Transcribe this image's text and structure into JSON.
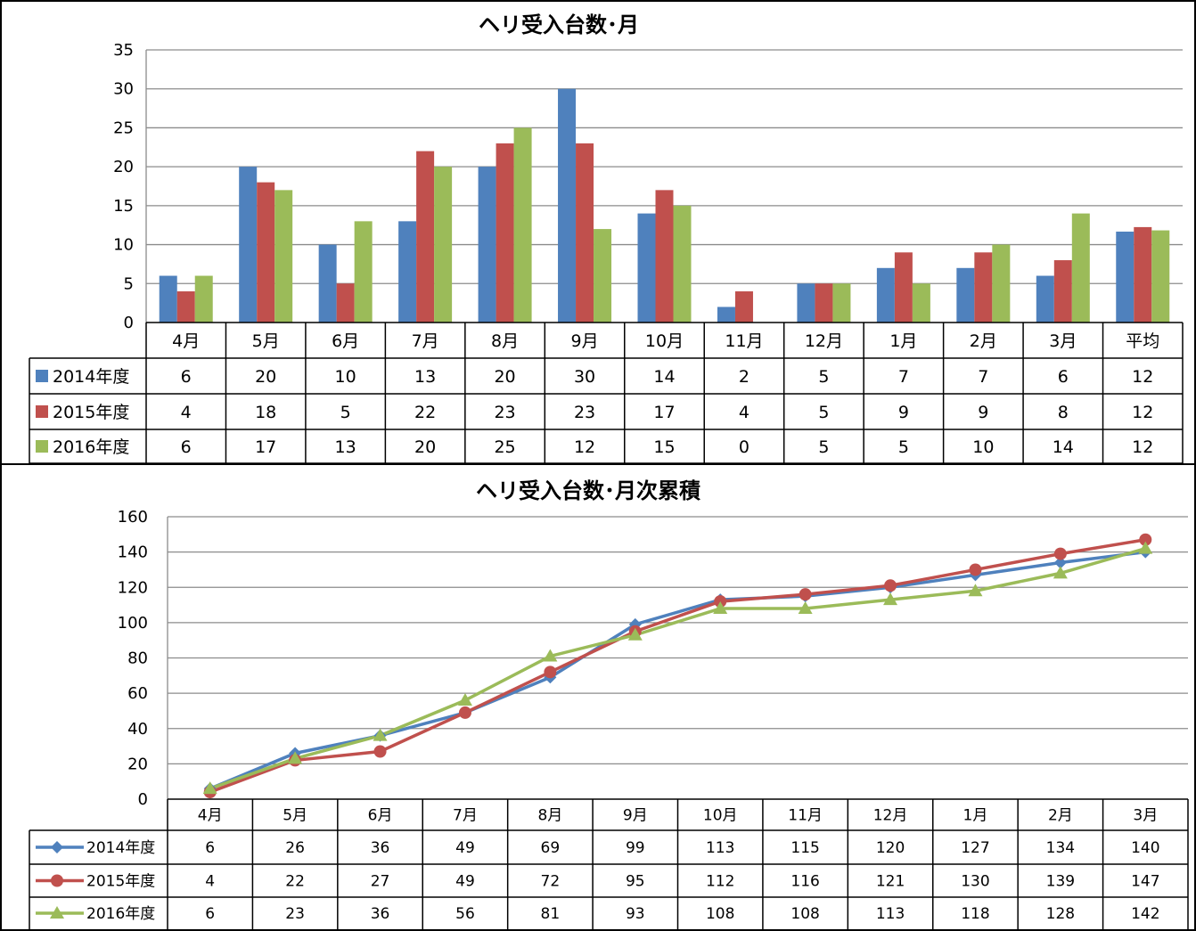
{
  "colors": {
    "series": [
      "#4F81BD",
      "#C0504D",
      "#9BBB59"
    ],
    "grid": "#8C8C8C",
    "frame": "#000000"
  },
  "chart_data": [
    {
      "type": "bar",
      "title": "ヘリ受入台数･月",
      "categories": [
        "4月",
        "5月",
        "6月",
        "7月",
        "8月",
        "9月",
        "10月",
        "11月",
        "12月",
        "1月",
        "2月",
        "3月",
        "平均"
      ],
      "ylim": [
        0,
        35
      ],
      "yticks": [
        "0",
        "5",
        "10",
        "15",
        "20",
        "25",
        "30",
        "35"
      ],
      "grid": true,
      "legend": "data-table",
      "series": [
        {
          "name": "2014年度",
          "values": [
            6,
            20,
            10,
            13,
            20,
            30,
            14,
            2,
            5,
            7,
            7,
            6,
            11.67
          ],
          "labels": [
            "6",
            "20",
            "10",
            "13",
            "20",
            "30",
            "14",
            "2",
            "5",
            "7",
            "7",
            "6",
            "12"
          ]
        },
        {
          "name": "2015年度",
          "values": [
            4,
            18,
            5,
            22,
            23,
            23,
            17,
            4,
            5,
            9,
            9,
            8,
            12.25
          ],
          "labels": [
            "4",
            "18",
            "5",
            "22",
            "23",
            "23",
            "17",
            "4",
            "5",
            "9",
            "9",
            "8",
            "12"
          ]
        },
        {
          "name": "2016年度",
          "values": [
            6,
            17,
            13,
            20,
            25,
            12,
            15,
            0,
            5,
            5,
            10,
            14,
            11.83
          ],
          "labels": [
            "6",
            "17",
            "13",
            "20",
            "25",
            "12",
            "15",
            "0",
            "5",
            "5",
            "10",
            "14",
            "12"
          ]
        }
      ]
    },
    {
      "type": "line",
      "title": "ヘリ受入台数･月次累積",
      "categories": [
        "4月",
        "5月",
        "6月",
        "7月",
        "8月",
        "9月",
        "10月",
        "11月",
        "12月",
        "1月",
        "2月",
        "3月"
      ],
      "ylim": [
        0,
        160
      ],
      "yticks": [
        "0",
        "20",
        "40",
        "60",
        "80",
        "100",
        "120",
        "140",
        "160"
      ],
      "grid": true,
      "legend": "data-table",
      "series": [
        {
          "name": "2014年度",
          "marker": "diamond",
          "values": [
            6,
            26,
            36,
            49,
            69,
            99,
            113,
            115,
            120,
            127,
            134,
            140
          ]
        },
        {
          "name": "2015年度",
          "marker": "circle",
          "values": [
            4,
            22,
            27,
            49,
            72,
            95,
            112,
            116,
            121,
            130,
            139,
            147
          ]
        },
        {
          "name": "2016年度",
          "marker": "triangle",
          "values": [
            6,
            23,
            36,
            56,
            81,
            93,
            108,
            108,
            113,
            118,
            128,
            142
          ]
        }
      ]
    }
  ]
}
